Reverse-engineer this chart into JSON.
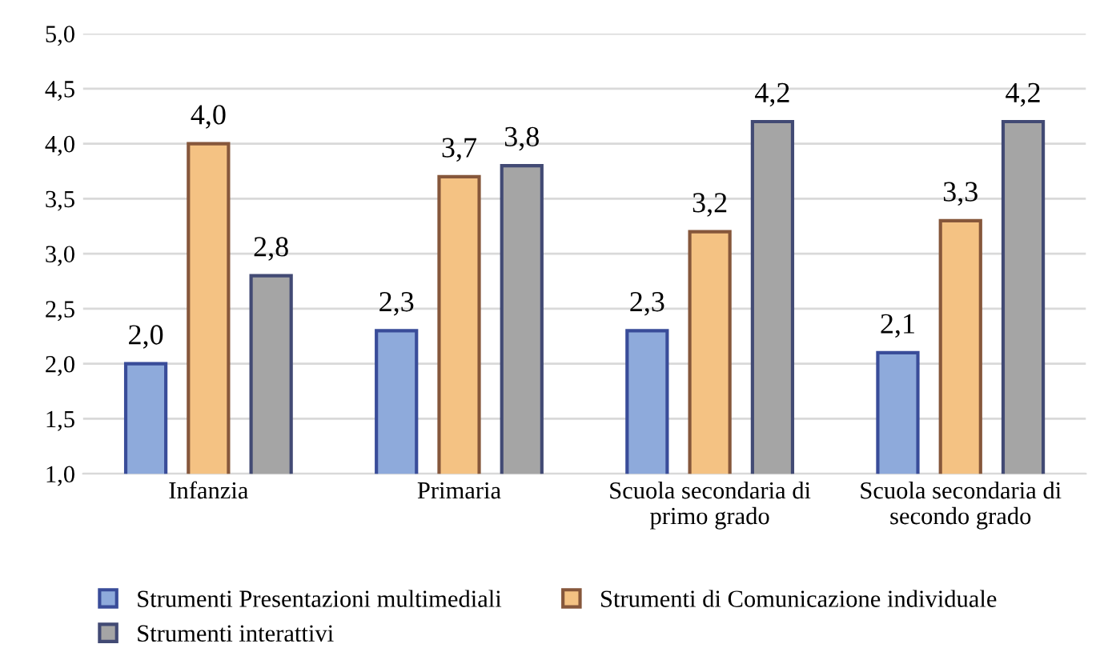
{
  "chart_data": {
    "type": "bar",
    "categories": [
      "Infanzia",
      "Primaria",
      "Scuola secondaria di\nprimo grado",
      "Scuola secondaria di\nsecondo grado"
    ],
    "series": [
      {
        "name": "Strumenti Presentazioni multimediali",
        "color": "#8eaadb",
        "values": [
          2.0,
          2.3,
          2.3,
          2.1
        ],
        "value_labels": [
          "2,0",
          "2,3",
          "2,3",
          "2,1"
        ]
      },
      {
        "name": "Strumenti di Comunicazione individuale",
        "color": "#f4c283",
        "values": [
          4.0,
          3.7,
          3.2,
          3.3
        ],
        "value_labels": [
          "4,0",
          "3,7",
          "3,2",
          "3,3"
        ]
      },
      {
        "name": "Strumenti interattivi",
        "color": "#a5a5a5",
        "values": [
          2.8,
          3.8,
          4.2,
          4.2
        ],
        "value_labels": [
          "2,8",
          "3,8",
          "4,2",
          "4,2"
        ]
      }
    ],
    "ylim": [
      1.0,
      5.0
    ],
    "yticks": [
      {
        "value": 1.0,
        "label": "1,0"
      },
      {
        "value": 1.5,
        "label": "1,5"
      },
      {
        "value": 2.0,
        "label": "2,0"
      },
      {
        "value": 2.5,
        "label": "2,5"
      },
      {
        "value": 3.0,
        "label": "3,0"
      },
      {
        "value": 3.5,
        "label": "3,5"
      },
      {
        "value": 4.0,
        "label": "4,0"
      },
      {
        "value": 4.5,
        "label": "4,5"
      },
      {
        "value": 5.0,
        "label": "5,0"
      }
    ],
    "grid": "y",
    "legend": "bottom"
  }
}
